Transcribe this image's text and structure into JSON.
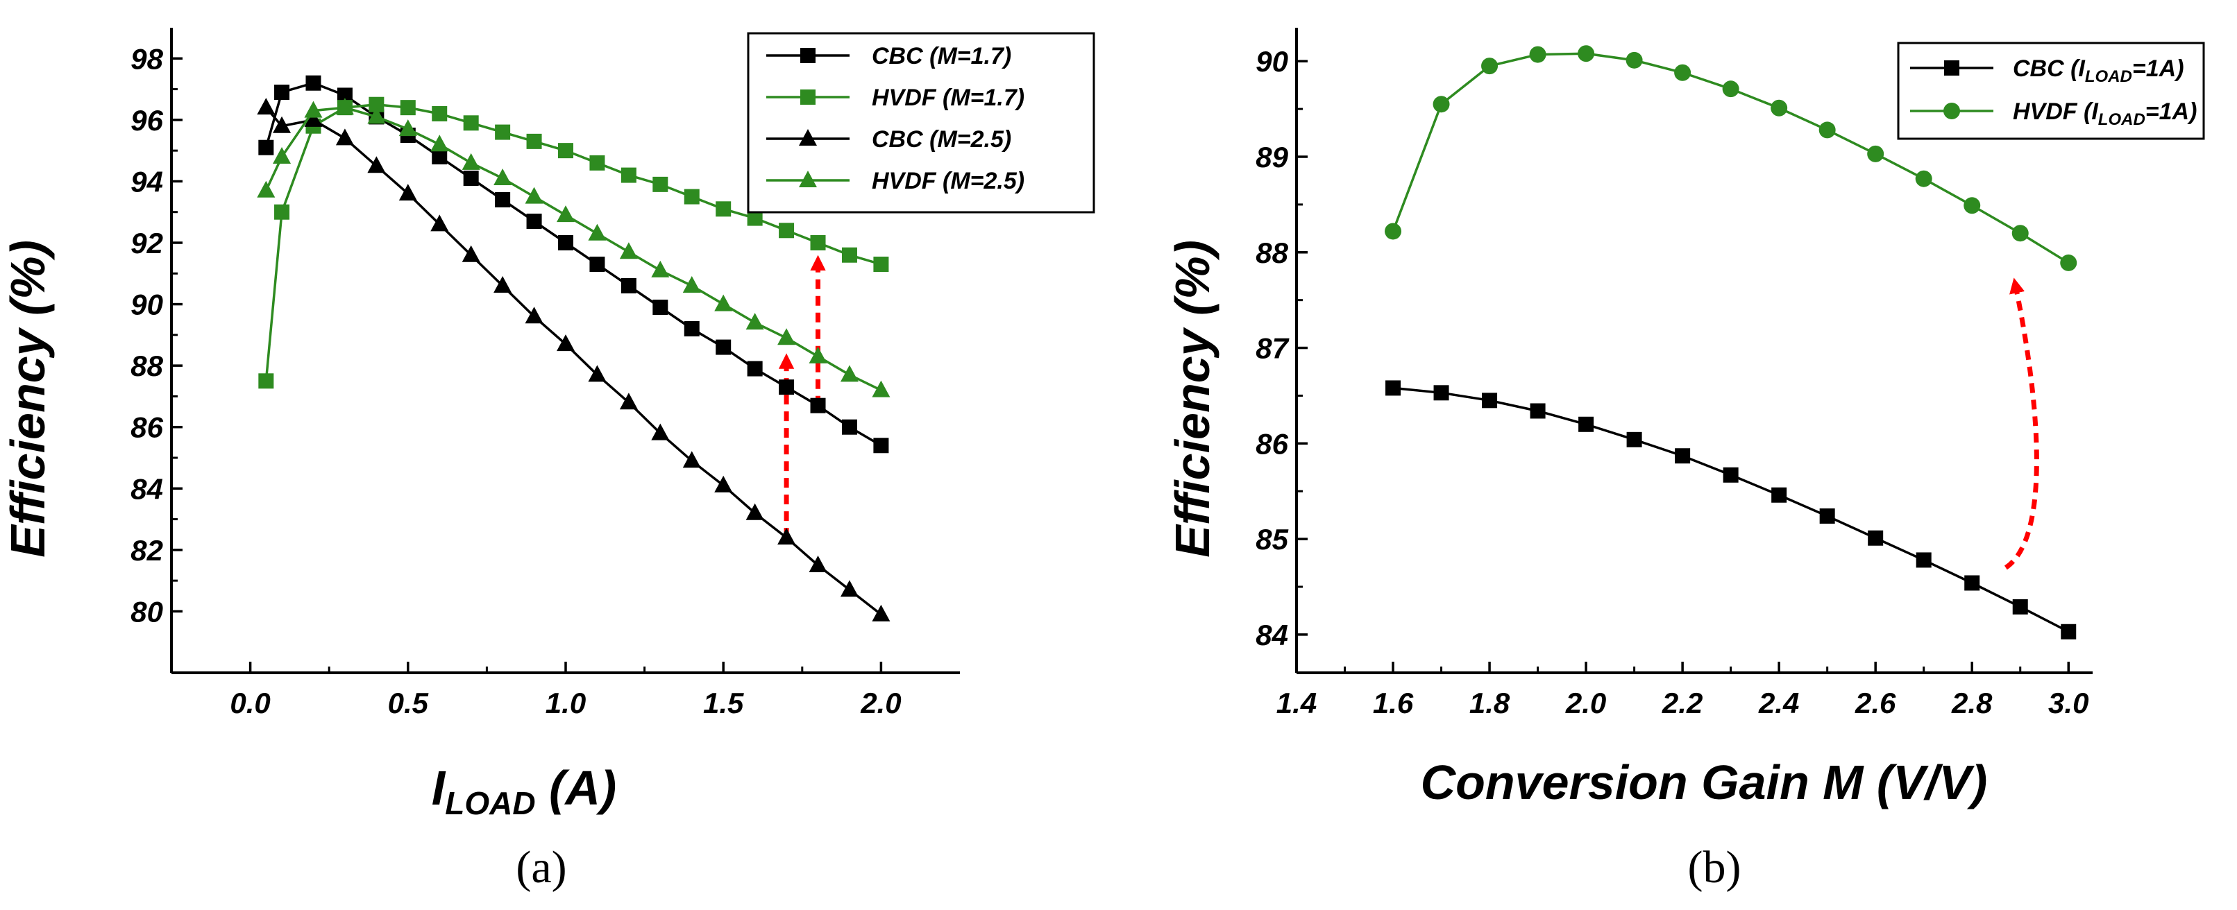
{
  "chart_data": [
    {
      "type": "line",
      "panel_label": "(a)",
      "xlabel_main": "I",
      "xlabel_sub": "LOAD",
      "xlabel_tail": " (A)",
      "ylabel": "Efficiency (%)",
      "xlim": [
        -0.25,
        2.25
      ],
      "ylim": [
        78,
        99
      ],
      "xticks": [
        0.0,
        0.5,
        1.0,
        1.5,
        2.0
      ],
      "xtick_labels": [
        "0.0",
        "0.5",
        "1.0",
        "1.5",
        "2.0"
      ],
      "yticks": [
        80,
        82,
        84,
        86,
        88,
        90,
        92,
        94,
        96,
        98
      ],
      "ytick_labels": [
        "80",
        "82",
        "84",
        "86",
        "88",
        "90",
        "92",
        "94",
        "96",
        "98"
      ],
      "series": [
        {
          "name": "CBC (M=1.7)",
          "legend_parts": [
            "CBC (",
            "M",
            "=1.7)"
          ],
          "color": "#000000",
          "marker": "square",
          "x": [
            0.05,
            0.1,
            0.2,
            0.3,
            0.4,
            0.5,
            0.6,
            0.7,
            0.8,
            0.9,
            1.0,
            1.1,
            1.2,
            1.3,
            1.4,
            1.5,
            1.6,
            1.7,
            1.8,
            1.9,
            2.0
          ],
          "y": [
            95.1,
            96.9,
            97.2,
            96.8,
            96.1,
            95.5,
            94.8,
            94.1,
            93.4,
            92.7,
            92.0,
            91.3,
            90.6,
            89.9,
            89.2,
            88.6,
            87.9,
            87.3,
            86.7,
            86.0,
            85.4
          ]
        },
        {
          "name": "HVDF (M=1.7)",
          "legend_parts": [
            "HVDF (",
            "M",
            "=1.7)"
          ],
          "color": "#2e8b20",
          "marker": "square",
          "x": [
            0.05,
            0.1,
            0.2,
            0.3,
            0.4,
            0.5,
            0.6,
            0.7,
            0.8,
            0.9,
            1.0,
            1.1,
            1.2,
            1.3,
            1.4,
            1.5,
            1.6,
            1.7,
            1.8,
            1.9,
            2.0
          ],
          "y": [
            87.5,
            93.0,
            95.8,
            96.4,
            96.5,
            96.4,
            96.2,
            95.9,
            95.6,
            95.3,
            95.0,
            94.6,
            94.2,
            93.9,
            93.5,
            93.1,
            92.8,
            92.4,
            92.0,
            91.6,
            91.3
          ]
        },
        {
          "name": "CBC (M=2.5)",
          "legend_parts": [
            "CBC (",
            "M",
            "=2.5)"
          ],
          "color": "#000000",
          "marker": "triangle",
          "x": [
            0.05,
            0.1,
            0.2,
            0.3,
            0.4,
            0.5,
            0.6,
            0.7,
            0.8,
            0.9,
            1.0,
            1.1,
            1.2,
            1.3,
            1.4,
            1.5,
            1.6,
            1.7,
            1.8,
            1.9,
            2.0
          ],
          "y": [
            96.4,
            95.8,
            96.0,
            95.4,
            94.5,
            93.6,
            92.6,
            91.6,
            90.6,
            89.6,
            88.7,
            87.7,
            86.8,
            85.8,
            84.9,
            84.1,
            83.2,
            82.4,
            81.5,
            80.7,
            79.9
          ]
        },
        {
          "name": "HVDF (M=2.5)",
          "legend_parts": [
            "HVDF (",
            "M",
            "=2.5)"
          ],
          "color": "#2e8b20",
          "marker": "triangle",
          "x": [
            0.05,
            0.1,
            0.2,
            0.3,
            0.4,
            0.5,
            0.6,
            0.7,
            0.8,
            0.9,
            1.0,
            1.1,
            1.2,
            1.3,
            1.4,
            1.5,
            1.6,
            1.7,
            1.8,
            1.9,
            2.0
          ],
          "y": [
            93.7,
            94.8,
            96.3,
            96.4,
            96.1,
            95.7,
            95.2,
            94.6,
            94.1,
            93.5,
            92.9,
            92.3,
            91.7,
            91.1,
            90.6,
            90.0,
            89.4,
            88.9,
            88.3,
            87.7,
            87.2
          ]
        }
      ],
      "annotations": [
        {
          "type": "arrow",
          "style": "dashed",
          "color": "#ff0000",
          "from": [
            1.7,
            82.4
          ],
          "to": [
            1.7,
            88.6
          ]
        },
        {
          "type": "arrow",
          "style": "dashed",
          "color": "#ff0000",
          "from": [
            1.8,
            86.7
          ],
          "to": [
            1.8,
            91.8
          ]
        }
      ],
      "legend": "top-right"
    },
    {
      "type": "line",
      "panel_label": "(b)",
      "xlabel": "Conversion Gain M (V/V)",
      "ylabel": "Efficiency (%)",
      "xlim": [
        1.4,
        3.05
      ],
      "ylim": [
        83.6,
        90.35
      ],
      "xticks": [
        1.4,
        1.6,
        1.8,
        2.0,
        2.2,
        2.4,
        2.6,
        2.8,
        3.0
      ],
      "xtick_labels": [
        "1.4",
        "1.6",
        "1.8",
        "2.0",
        "2.2",
        "2.4",
        "2.6",
        "2.8",
        "3.0"
      ],
      "yticks": [
        84,
        85,
        86,
        87,
        88,
        89,
        90
      ],
      "ytick_labels": [
        "84",
        "85",
        "86",
        "87",
        "88",
        "89",
        "90"
      ],
      "series": [
        {
          "name": "CBC (ILOAD=1A)",
          "legend_parts": [
            "CBC (I",
            "LOAD",
            "=1A)"
          ],
          "color": "#000000",
          "marker": "square",
          "x": [
            1.6,
            1.7,
            1.8,
            1.9,
            2.0,
            2.1,
            2.2,
            2.3,
            2.4,
            2.5,
            2.6,
            2.7,
            2.8,
            2.9,
            3.0
          ],
          "y": [
            86.58,
            86.53,
            86.45,
            86.34,
            86.2,
            86.04,
            85.87,
            85.67,
            85.46,
            85.24,
            85.01,
            84.78,
            84.54,
            84.29,
            84.03
          ]
        },
        {
          "name": "HVDF (ILOAD=1A)",
          "legend_parts": [
            "HVDF (I",
            "LOAD",
            "=1A)"
          ],
          "color": "#2e8b20",
          "marker": "circle",
          "x": [
            1.6,
            1.7,
            1.8,
            1.9,
            2.0,
            2.1,
            2.2,
            2.3,
            2.4,
            2.5,
            2.6,
            2.7,
            2.8,
            2.9,
            3.0
          ],
          "y": [
            88.22,
            89.55,
            89.95,
            90.07,
            90.08,
            90.01,
            89.88,
            89.71,
            89.51,
            89.28,
            89.03,
            88.77,
            88.49,
            88.2,
            87.89
          ]
        }
      ],
      "annotations": [
        {
          "type": "arrow",
          "style": "dashed",
          "color": "#ff0000",
          "shape": "curved",
          "from": [
            2.87,
            84.7
          ],
          "to": [
            2.89,
            87.8
          ]
        }
      ],
      "legend": "top-right"
    }
  ]
}
